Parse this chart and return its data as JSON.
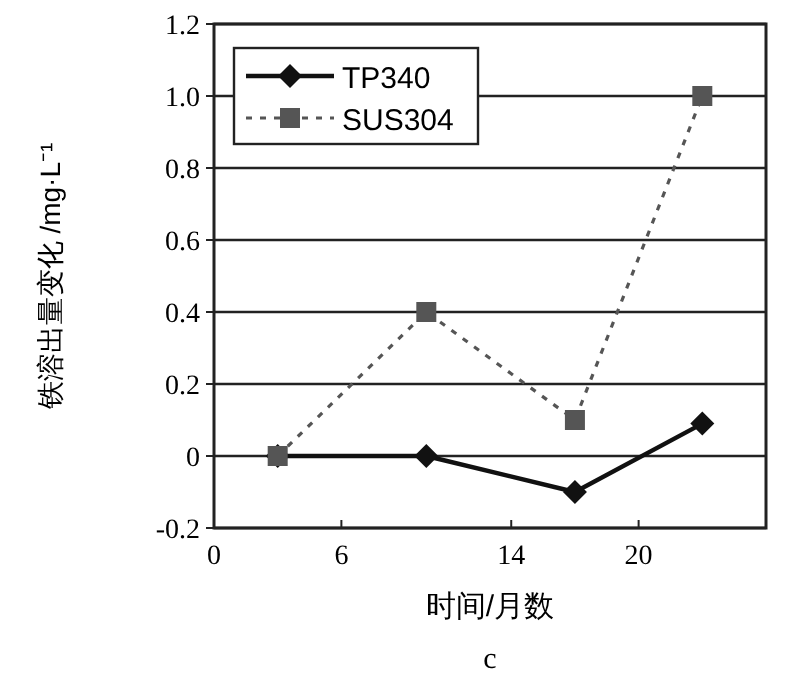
{
  "chart_data": {
    "type": "line",
    "xlabel": "时间/月数",
    "ylabel": "铁溶出量变化 /mg·L⁻¹",
    "annotations": [
      "c"
    ],
    "x": [
      3,
      10,
      17,
      23
    ],
    "series": [
      {
        "name": "TP340",
        "color": "#111111",
        "marker": "diamond",
        "line_style": "solid",
        "values": [
          0,
          0,
          -0.1,
          0.09
        ]
      },
      {
        "name": "SUS304",
        "color": "#555555",
        "marker": "square",
        "line_style": "dashed",
        "values": [
          0,
          0.4,
          0.1,
          1.0
        ]
      }
    ],
    "xlim": [
      0,
      26
    ],
    "xticks": [
      0,
      6,
      14,
      20
    ],
    "ylim": [
      -0.2,
      1.2
    ],
    "yticks": [
      -0.2,
      0,
      0.2,
      0.4,
      0.6,
      0.8,
      {
        "value": 1,
        "label": "1.0"
      },
      1.2
    ],
    "grid": "y",
    "legend": "top left"
  }
}
